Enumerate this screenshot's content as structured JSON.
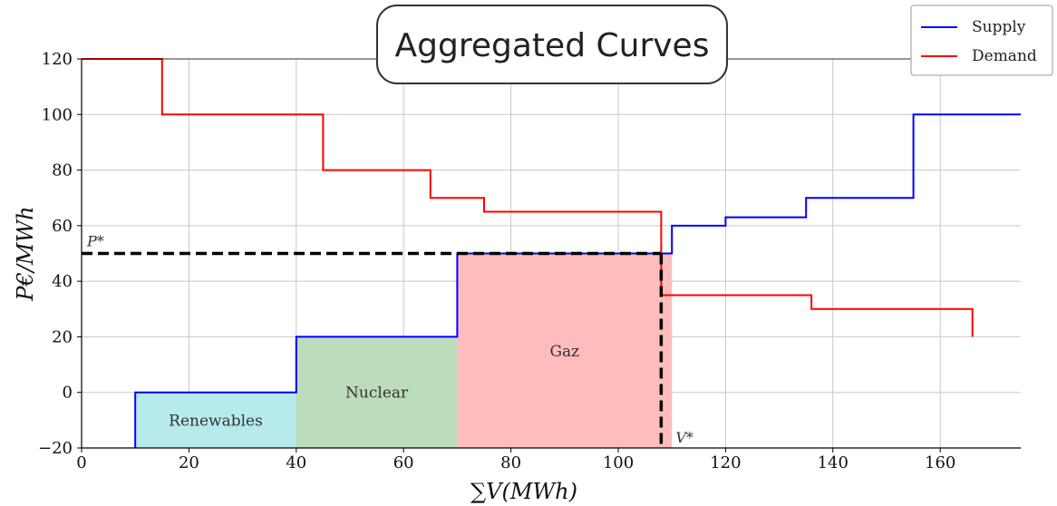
{
  "chart_data": {
    "type": "line",
    "title": "Aggregated Curves",
    "xlabel": "∑V(MWh)",
    "ylabel": "P€/MWh",
    "xlim": [
      0,
      175
    ],
    "ylim": [
      -20,
      120
    ],
    "xticks": [
      0,
      20,
      40,
      60,
      80,
      100,
      120,
      140,
      160
    ],
    "yticks": [
      -20,
      0,
      20,
      40,
      60,
      80,
      100,
      120
    ],
    "grid": true,
    "legend_position": "top-right",
    "series": [
      {
        "name": "Supply",
        "color": "#0000ff",
        "step": "post",
        "x": [
          10,
          10,
          40,
          40,
          70,
          70,
          110,
          110,
          120,
          120,
          135,
          135,
          155,
          155,
          175
        ],
        "y": [
          -20,
          0,
          0,
          20,
          20,
          50,
          50,
          60,
          60,
          63,
          63,
          70,
          70,
          100,
          100
        ]
      },
      {
        "name": "Demand",
        "color": "#ff0000",
        "step": "post",
        "x": [
          0,
          15,
          15,
          45,
          45,
          65,
          65,
          75,
          75,
          108,
          108,
          136,
          136,
          166,
          166
        ],
        "y": [
          120,
          120,
          100,
          100,
          80,
          80,
          70,
          70,
          65,
          65,
          35,
          35,
          30,
          30,
          20
        ]
      }
    ],
    "regions": [
      {
        "label": "Renewables",
        "x0": 10,
        "x1": 40,
        "y0": -20,
        "y1": 0,
        "color": "#b7eaea"
      },
      {
        "label": "Nuclear",
        "x0": 40,
        "x1": 70,
        "y0": -20,
        "y1": 20,
        "color": "#bcdcbc"
      },
      {
        "label": "Gaz",
        "x0": 70,
        "x1": 110,
        "y0": -20,
        "y1": 50,
        "color": "#ffbcbc"
      }
    ],
    "equilibrium": {
      "price": 50,
      "volume": 108,
      "price_label": "P*",
      "volume_label": "V*"
    }
  }
}
